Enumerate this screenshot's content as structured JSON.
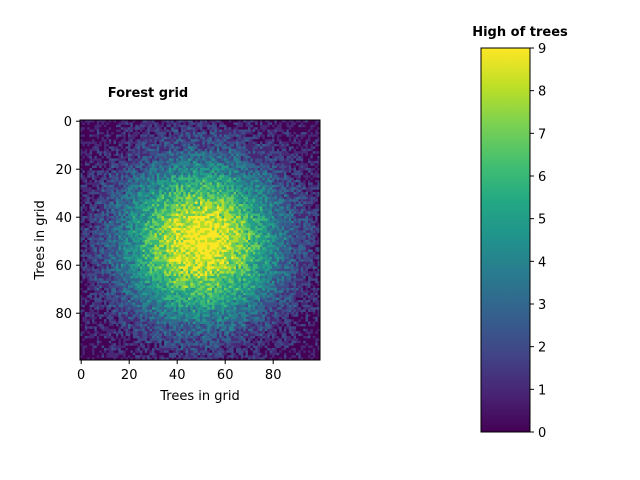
{
  "chart_data": [
    {
      "type": "heatmap",
      "title": "Forest grid",
      "xlabel": "Trees in grid",
      "ylabel": "Trees in grid",
      "grid_size": [
        100,
        100
      ],
      "xlim": [
        0,
        99
      ],
      "ylim": [
        99,
        0
      ],
      "x_ticks": [
        "0",
        "20",
        "40",
        "60",
        "80"
      ],
      "y_ticks": [
        "0",
        "20",
        "40",
        "60",
        "80"
      ],
      "colormap": "viridis",
      "value_range": [
        0,
        9
      ],
      "pattern": "noisy radial peak",
      "peak_center": [
        50,
        50
      ],
      "peak_value": 9,
      "edge_value": 0,
      "noise_amplitude": 1,
      "grid": false
    },
    {
      "type": "colorbar",
      "title": "High of trees",
      "ticks": [
        "0",
        "1",
        "2",
        "3",
        "4",
        "5",
        "6",
        "7",
        "8",
        "9"
      ],
      "range": [
        0,
        9
      ],
      "colormap": "viridis"
    }
  ],
  "colors": {
    "viridis_stops": [
      "#440154",
      "#482475",
      "#414487",
      "#355f8d",
      "#2a788e",
      "#21918c",
      "#22a884",
      "#44bf70",
      "#7ad151",
      "#bddf26",
      "#fde725"
    ],
    "axis": "#000000"
  }
}
